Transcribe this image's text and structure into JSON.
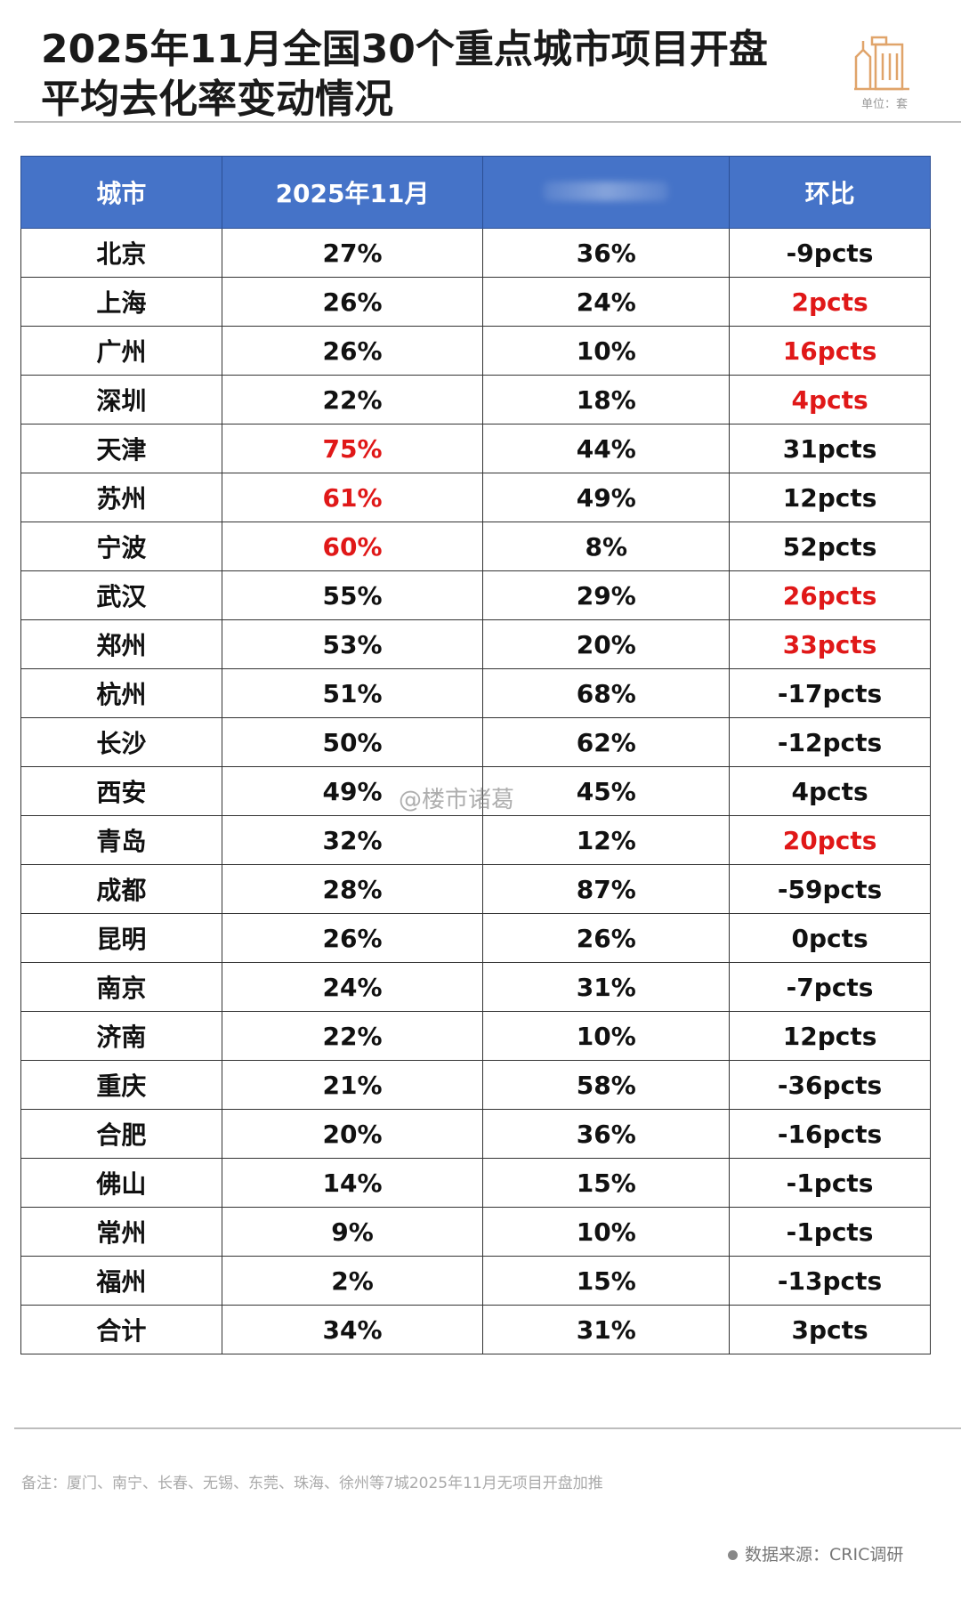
{
  "title_line1": "2025年11月全国30个重点城市项目开盘",
  "title_line2": "平均去化率变动情况",
  "unit": "单位：套",
  "logo_icon": "building-icon",
  "accent_color": "#4573c8",
  "highlight_color": "#e01818",
  "table": {
    "headers": [
      "城市",
      "2025年11月",
      "",
      "环比"
    ],
    "rows": [
      {
        "city": "北京",
        "nov": "27%",
        "prev": "36%",
        "mom": "-9pcts",
        "nov_red": false,
        "mom_red": false
      },
      {
        "city": "上海",
        "nov": "26%",
        "prev": "24%",
        "mom": "2pcts",
        "nov_red": false,
        "mom_red": true
      },
      {
        "city": "广州",
        "nov": "26%",
        "prev": "10%",
        "mom": "16pcts",
        "nov_red": false,
        "mom_red": true
      },
      {
        "city": "深圳",
        "nov": "22%",
        "prev": "18%",
        "mom": "4pcts",
        "nov_red": false,
        "mom_red": true
      },
      {
        "city": "天津",
        "nov": "75%",
        "prev": "44%",
        "mom": "31pcts",
        "nov_red": true,
        "mom_red": false
      },
      {
        "city": "苏州",
        "nov": "61%",
        "prev": "49%",
        "mom": "12pcts",
        "nov_red": true,
        "mom_red": false
      },
      {
        "city": "宁波",
        "nov": "60%",
        "prev": "8%",
        "mom": "52pcts",
        "nov_red": true,
        "mom_red": false
      },
      {
        "city": "武汉",
        "nov": "55%",
        "prev": "29%",
        "mom": "26pcts",
        "nov_red": false,
        "mom_red": true
      },
      {
        "city": "郑州",
        "nov": "53%",
        "prev": "20%",
        "mom": "33pcts",
        "nov_red": false,
        "mom_red": true
      },
      {
        "city": "杭州",
        "nov": "51%",
        "prev": "68%",
        "mom": "-17pcts",
        "nov_red": false,
        "mom_red": false
      },
      {
        "city": "长沙",
        "nov": "50%",
        "prev": "62%",
        "mom": "-12pcts",
        "nov_red": false,
        "mom_red": false
      },
      {
        "city": "西安",
        "nov": "49%",
        "prev": "45%",
        "mom": "4pcts",
        "nov_red": false,
        "mom_red": false
      },
      {
        "city": "青岛",
        "nov": "32%",
        "prev": "12%",
        "mom": "20pcts",
        "nov_red": false,
        "mom_red": true
      },
      {
        "city": "成都",
        "nov": "28%",
        "prev": "87%",
        "mom": "-59pcts",
        "nov_red": false,
        "mom_red": false
      },
      {
        "city": "昆明",
        "nov": "26%",
        "prev": "26%",
        "mom": "0pcts",
        "nov_red": false,
        "mom_red": false
      },
      {
        "city": "南京",
        "nov": "24%",
        "prev": "31%",
        "mom": "-7pcts",
        "nov_red": false,
        "mom_red": false
      },
      {
        "city": "济南",
        "nov": "22%",
        "prev": "10%",
        "mom": "12pcts",
        "nov_red": false,
        "mom_red": false
      },
      {
        "city": "重庆",
        "nov": "21%",
        "prev": "58%",
        "mom": "-36pcts",
        "nov_red": false,
        "mom_red": false
      },
      {
        "city": "合肥",
        "nov": "20%",
        "prev": "36%",
        "mom": "-16pcts",
        "nov_red": false,
        "mom_red": false
      },
      {
        "city": "佛山",
        "nov": "14%",
        "prev": "15%",
        "mom": "-1pcts",
        "nov_red": false,
        "mom_red": false
      },
      {
        "city": "常州",
        "nov": "9%",
        "prev": "10%",
        "mom": "-1pcts",
        "nov_red": false,
        "mom_red": false
      },
      {
        "city": "福州",
        "nov": "2%",
        "prev": "15%",
        "mom": "-13pcts",
        "nov_red": false,
        "mom_red": false
      },
      {
        "city": "合计",
        "nov": "34%",
        "prev": "31%",
        "mom": "3pcts",
        "nov_red": false,
        "mom_red": false
      }
    ]
  },
  "watermark": "@楼市诸葛",
  "note": "备注：厦门、南宁、长春、无锡、东莞、珠海、徐州等7城2025年11月无项目开盘加推",
  "source": "数据来源：CRIC调研"
}
